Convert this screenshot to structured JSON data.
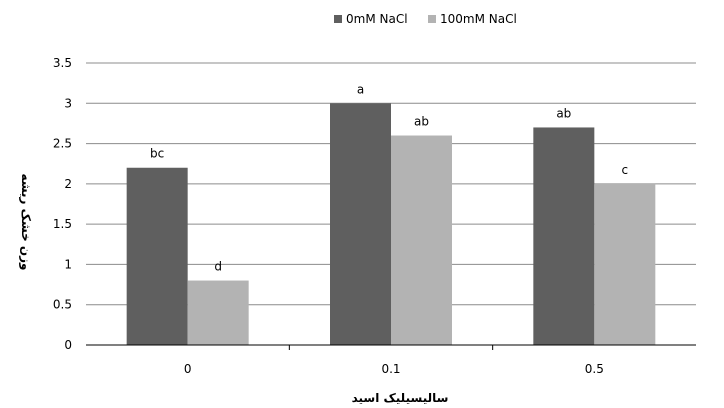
{
  "chart_data": {
    "type": "bar",
    "categories": [
      "0",
      "0.1",
      "0.5"
    ],
    "series": [
      {
        "name": "0mM NaCl",
        "color": "#5f5f5f",
        "values": [
          2.2,
          3.0,
          2.7
        ],
        "labels": [
          "bc",
          "a",
          "ab"
        ]
      },
      {
        "name": "100mM NaCl",
        "color": "#b3b3b3",
        "values": [
          0.8,
          2.6,
          2.0
        ],
        "labels": [
          "d",
          "ab",
          "c"
        ]
      }
    ],
    "xlabel": "سالیسیلیک اسید",
    "ylabel": "وزن خشک ریشه",
    "ylim": [
      0,
      3.5
    ],
    "yticks": [
      "0",
      "0.5",
      "1",
      "1.5",
      "2",
      "2.5",
      "3",
      "3.5"
    ],
    "grid": true,
    "legend_position": "top"
  }
}
